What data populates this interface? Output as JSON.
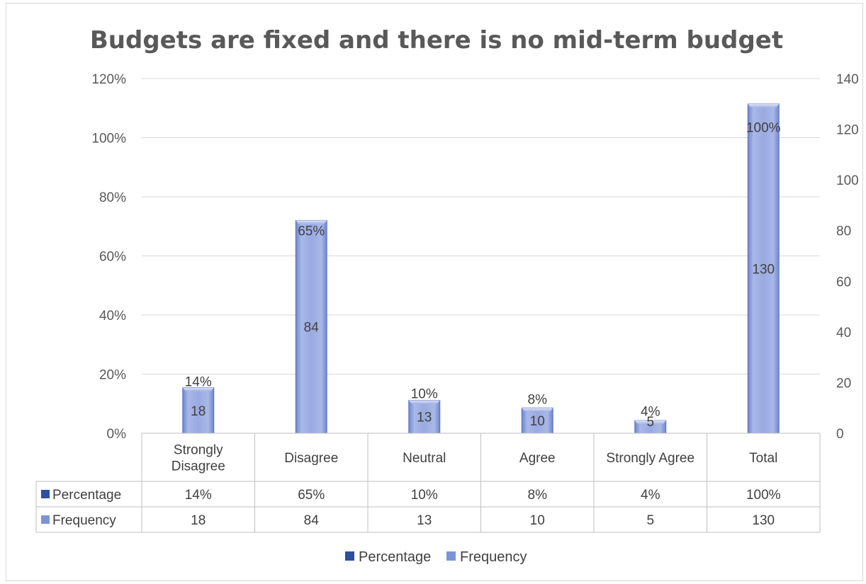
{
  "chart_data": {
    "type": "bar",
    "title": "Budgets are fixed and there is no mid-term budget",
    "categories": [
      [
        "Strongly",
        "Disagree"
      ],
      [
        "Disagree"
      ],
      [
        "Neutral"
      ],
      [
        "Agree"
      ],
      [
        "Strongly Agree"
      ],
      [
        "Total"
      ]
    ],
    "series": [
      {
        "name": "Percentage",
        "axis": "left",
        "values": [
          14,
          65,
          10,
          8,
          4,
          100
        ],
        "labels": [
          "14%",
          "65%",
          "10%",
          "8%",
          "4%",
          "100%"
        ],
        "color": "#4a69c0"
      },
      {
        "name": "Frequency",
        "axis": "right",
        "values": [
          18,
          84,
          13,
          10,
          5,
          130
        ],
        "labels": [
          "18",
          "84",
          "13",
          "10",
          "5",
          "130"
        ],
        "color": "#8fa2dc"
      }
    ],
    "y_left": {
      "range": [
        0,
        120
      ],
      "ticks": [
        "0%",
        "20%",
        "40%",
        "60%",
        "80%",
        "100%",
        "120%"
      ]
    },
    "y_right": {
      "range": [
        0,
        140
      ],
      "ticks": [
        "0",
        "20",
        "40",
        "60",
        "80",
        "100",
        "120",
        "140"
      ]
    },
    "grid": true,
    "data_table": true,
    "legend_position": "bottom"
  }
}
